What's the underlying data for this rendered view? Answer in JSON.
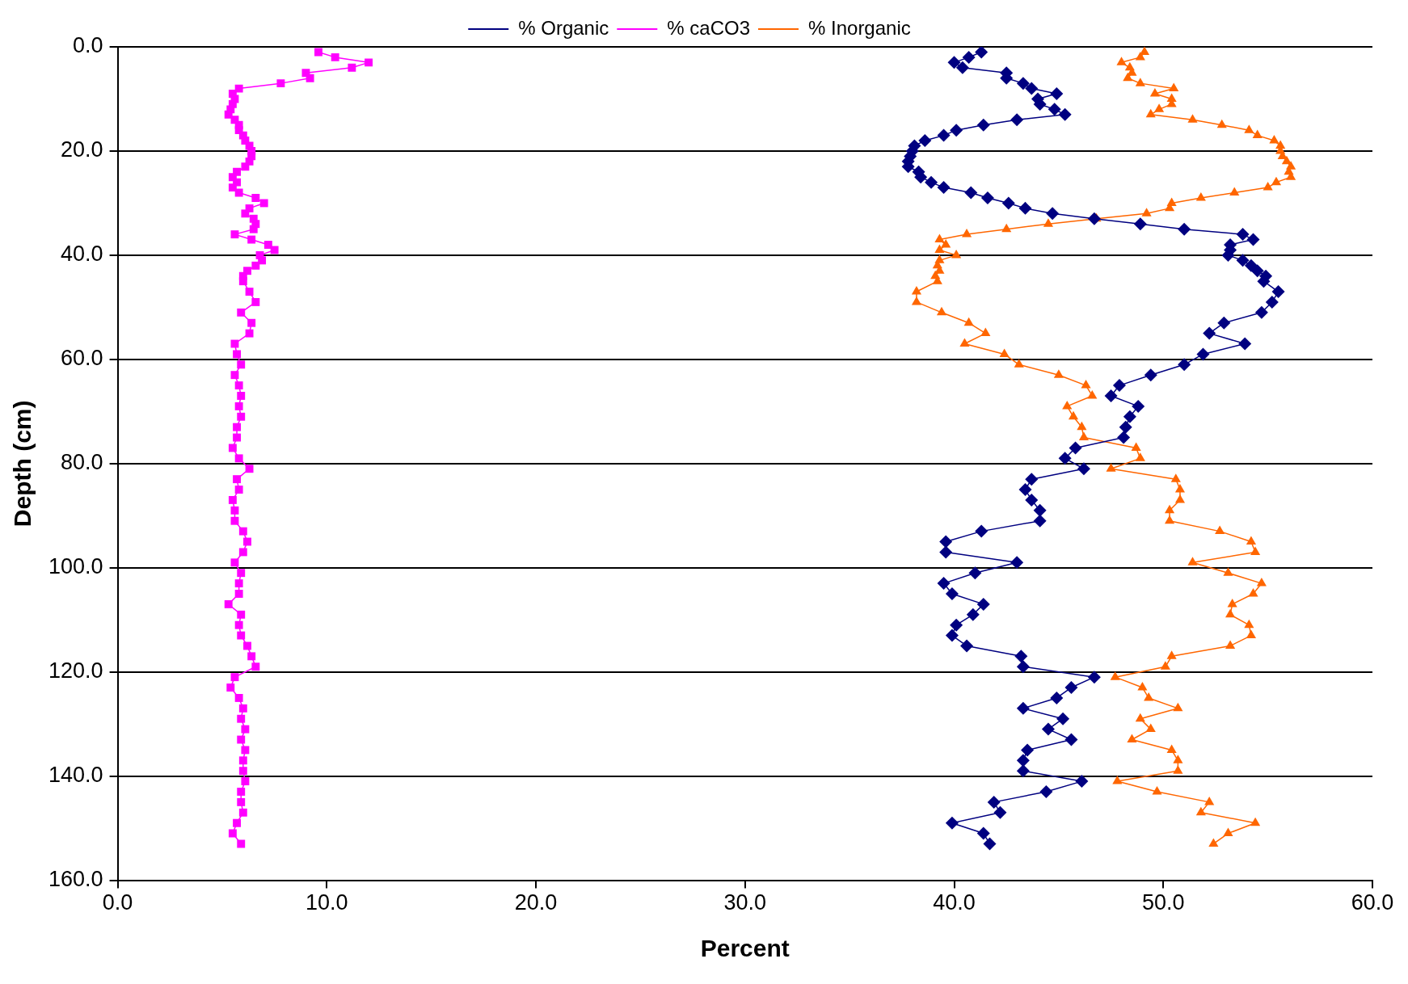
{
  "chart_data": {
    "type": "line",
    "xlabel": "Percent",
    "ylabel": "Depth (cm)",
    "xlim": [
      0,
      60
    ],
    "xticks": [
      {
        "value": 0,
        "label": "0.0"
      },
      {
        "value": 10,
        "label": "10.0"
      },
      {
        "value": 20,
        "label": "20.0"
      },
      {
        "value": 30,
        "label": "30.0"
      },
      {
        "value": 40,
        "label": "40.0"
      },
      {
        "value": 50,
        "label": "50.0"
      },
      {
        "value": 60,
        "label": "60.0"
      }
    ],
    "ylim": [
      160,
      0
    ],
    "yticks": [
      {
        "value": 0,
        "label": "0.0"
      },
      {
        "value": 20,
        "label": "20.0"
      },
      {
        "value": 40,
        "label": "40.0"
      },
      {
        "value": 60,
        "label": "60.0"
      },
      {
        "value": 80,
        "label": "80.0"
      },
      {
        "value": 100,
        "label": "100.0"
      },
      {
        "value": 120,
        "label": "120.0"
      },
      {
        "value": 140,
        "label": "140.0"
      },
      {
        "value": 160,
        "label": "160.0"
      }
    ],
    "grid": "y",
    "legend": "top",
    "line_style": "solid",
    "series": [
      {
        "name": "% Organic",
        "color": "#000080",
        "marker": "diamond",
        "x": [
          41.3,
          40.7,
          40.0,
          40.4,
          42.5,
          42.5,
          43.3,
          43.7,
          44.9,
          44.0,
          44.1,
          44.8,
          45.3,
          43.0,
          41.4,
          40.1,
          39.5,
          38.6,
          38.1,
          38.0,
          37.9,
          37.8,
          37.8,
          38.3,
          38.4,
          38.9,
          39.5,
          40.8,
          41.6,
          42.6,
          43.4,
          44.7,
          46.7,
          48.9,
          51.0,
          53.8,
          54.3,
          53.2,
          53.2,
          53.1,
          53.8,
          54.2,
          54.5,
          54.9,
          54.8,
          55.5,
          55.2,
          54.7,
          52.9,
          52.2,
          53.9,
          51.9,
          51.0,
          49.4,
          47.9,
          47.5,
          48.8,
          48.4,
          48.2,
          48.1,
          45.8,
          45.3,
          46.2,
          43.7,
          43.4,
          43.7,
          44.1,
          44.1,
          41.3,
          39.6,
          39.6,
          43.0,
          41.0,
          39.5,
          39.9,
          41.4,
          40.9,
          40.1,
          39.9,
          40.6,
          43.2,
          43.3,
          46.7,
          45.6,
          44.9,
          43.3,
          45.2,
          44.5,
          45.6,
          43.5,
          43.3,
          43.3,
          46.1,
          44.4,
          41.9,
          42.2,
          39.9,
          41.4,
          41.7
        ],
        "values": [
          1,
          2,
          3,
          4,
          5,
          6,
          7,
          8,
          9,
          10,
          11,
          12,
          13,
          14,
          15,
          16,
          17,
          18,
          19,
          20,
          21,
          22,
          23,
          24,
          25,
          26,
          27,
          28,
          29,
          30,
          31,
          32,
          33,
          34,
          35,
          36,
          37,
          38,
          39,
          40,
          41,
          42,
          43,
          44,
          45,
          47,
          49,
          51,
          53,
          55,
          57,
          59,
          61,
          63,
          65,
          67,
          69,
          71,
          73,
          75,
          77,
          79,
          81,
          83,
          85,
          87,
          89,
          91,
          93,
          95,
          97,
          99,
          101,
          103,
          105,
          107,
          109,
          111,
          113,
          115,
          117,
          119,
          121,
          123,
          125,
          127,
          129,
          131,
          133,
          135,
          137,
          139,
          141,
          143,
          145,
          147,
          149,
          151,
          153
        ]
      },
      {
        "name": "% caCO3",
        "color": "#ff00ff",
        "marker": "square",
        "x": [
          9.6,
          10.4,
          12.0,
          11.2,
          9.0,
          9.2,
          7.8,
          5.8,
          5.5,
          5.6,
          5.5,
          5.4,
          5.3,
          5.6,
          5.8,
          5.8,
          6.0,
          6.1,
          6.3,
          6.4,
          6.4,
          6.3,
          6.1,
          5.7,
          5.5,
          5.7,
          5.5,
          5.8,
          6.6,
          7.0,
          6.3,
          6.1,
          6.5,
          6.6,
          6.5,
          5.6,
          6.4,
          7.2,
          7.5,
          6.8,
          6.9,
          6.6,
          6.2,
          6.0,
          6.0,
          6.3,
          6.6,
          5.9,
          6.4,
          6.3,
          5.6,
          5.7,
          5.9,
          5.6,
          5.8,
          5.9,
          5.8,
          5.9,
          5.7,
          5.7,
          5.5,
          5.8,
          6.3,
          5.7,
          5.8,
          5.5,
          5.6,
          5.6,
          6.0,
          6.2,
          6.0,
          5.6,
          5.9,
          5.8,
          5.8,
          5.3,
          5.9,
          5.8,
          5.9,
          6.2,
          6.4,
          6.6,
          5.6,
          5.4,
          5.8,
          6.0,
          5.9,
          6.1,
          5.9,
          6.1,
          6.0,
          6.0,
          6.1,
          5.9,
          5.9,
          6.0,
          5.7,
          5.5,
          5.9
        ],
        "values": [
          1,
          2,
          3,
          4,
          5,
          6,
          7,
          8,
          9,
          10,
          11,
          12,
          13,
          14,
          15,
          16,
          17,
          18,
          19,
          20,
          21,
          22,
          23,
          24,
          25,
          26,
          27,
          28,
          29,
          30,
          31,
          32,
          33,
          34,
          35,
          36,
          37,
          38,
          39,
          40,
          41,
          42,
          43,
          44,
          45,
          47,
          49,
          51,
          53,
          55,
          57,
          59,
          61,
          63,
          65,
          67,
          69,
          71,
          73,
          75,
          77,
          79,
          81,
          83,
          85,
          87,
          89,
          91,
          93,
          95,
          97,
          99,
          101,
          103,
          105,
          107,
          109,
          111,
          113,
          115,
          117,
          119,
          121,
          123,
          125,
          127,
          129,
          131,
          133,
          135,
          137,
          139,
          141,
          143,
          145,
          147,
          149,
          151,
          153
        ]
      },
      {
        "name": "% Inorganic",
        "color": "#ff6600",
        "marker": "triangle",
        "x": [
          49.1,
          48.9,
          48.0,
          48.4,
          48.5,
          48.3,
          48.9,
          50.5,
          49.6,
          50.4,
          50.4,
          49.8,
          49.4,
          51.4,
          52.8,
          54.1,
          54.5,
          55.3,
          55.6,
          55.6,
          55.7,
          55.9,
          56.1,
          56.0,
          56.1,
          55.4,
          55.0,
          53.4,
          51.8,
          50.4,
          50.3,
          49.2,
          46.8,
          44.5,
          42.5,
          40.6,
          39.3,
          39.6,
          39.3,
          40.1,
          39.3,
          39.2,
          39.3,
          39.1,
          39.2,
          38.2,
          38.2,
          39.4,
          40.7,
          41.5,
          40.5,
          42.4,
          43.1,
          45.0,
          46.3,
          46.6,
          45.4,
          45.7,
          46.1,
          46.2,
          48.7,
          48.9,
          47.5,
          50.6,
          50.8,
          50.8,
          50.3,
          50.3,
          52.7,
          54.2,
          54.4,
          51.4,
          53.1,
          54.7,
          54.3,
          53.3,
          53.2,
          54.1,
          54.2,
          53.2,
          50.4,
          50.1,
          47.7,
          49.0,
          49.3,
          50.7,
          48.9,
          49.4,
          48.5,
          50.4,
          50.7,
          50.7,
          47.8,
          49.7,
          52.2,
          51.8,
          54.4,
          53.1,
          52.4
        ],
        "values": [
          1,
          2,
          3,
          4,
          5,
          6,
          7,
          8,
          9,
          10,
          11,
          12,
          13,
          14,
          15,
          16,
          17,
          18,
          19,
          20,
          21,
          22,
          23,
          24,
          25,
          26,
          27,
          28,
          29,
          30,
          31,
          32,
          33,
          34,
          35,
          36,
          37,
          38,
          39,
          40,
          41,
          42,
          43,
          44,
          45,
          47,
          49,
          51,
          53,
          55,
          57,
          59,
          61,
          63,
          65,
          67,
          69,
          71,
          73,
          75,
          77,
          79,
          81,
          83,
          85,
          87,
          89,
          91,
          93,
          95,
          97,
          99,
          101,
          103,
          105,
          107,
          109,
          111,
          113,
          115,
          117,
          119,
          121,
          123,
          125,
          127,
          129,
          131,
          133,
          135,
          137,
          139,
          141,
          143,
          145,
          147,
          149,
          151,
          153
        ]
      }
    ]
  }
}
